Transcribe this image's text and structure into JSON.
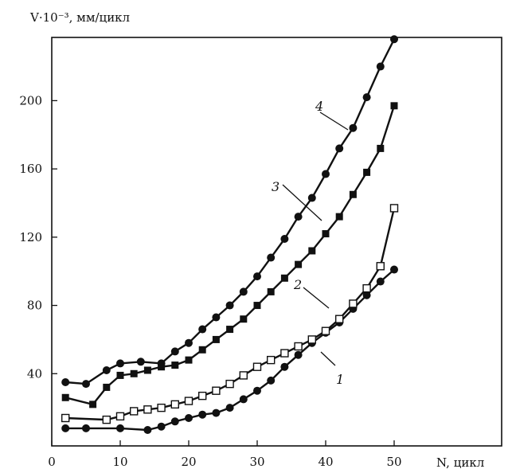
{
  "chart_data": {
    "type": "line",
    "ylabel": "V·10⁻³, мм/цикл",
    "xlabel": "N, цикл",
    "xlim": [
      0,
      52
    ],
    "ylim": [
      0,
      236
    ],
    "x_ticks": [
      0,
      10,
      20,
      30,
      40,
      50
    ],
    "y_ticks": [
      40,
      80,
      120,
      160,
      200
    ],
    "grid": false,
    "series": [
      {
        "name": "1",
        "marker": "filled-circle",
        "x": [
          2,
          5,
          10,
          14,
          16,
          18,
          20,
          22,
          24,
          26,
          28,
          30,
          32,
          34,
          36,
          38,
          40,
          42,
          44,
          46,
          48,
          50
        ],
        "y": [
          8,
          8,
          8,
          7,
          9,
          12,
          14,
          16,
          17,
          20,
          25,
          30,
          36,
          44,
          51,
          58,
          64,
          70,
          78,
          86,
          94,
          101
        ]
      },
      {
        "name": "2",
        "marker": "open-square",
        "x": [
          2,
          8,
          10,
          12,
          14,
          16,
          18,
          20,
          22,
          24,
          26,
          28,
          30,
          32,
          34,
          36,
          38,
          40,
          42,
          44,
          46,
          48,
          50
        ],
        "y": [
          14,
          13,
          15,
          18,
          19,
          20,
          22,
          24,
          27,
          30,
          34,
          39,
          44,
          48,
          52,
          56,
          60,
          65,
          72,
          81,
          90,
          103,
          137
        ]
      },
      {
        "name": "3",
        "marker": "filled-square",
        "x": [
          2,
          6,
          8,
          10,
          12,
          14,
          16,
          18,
          20,
          22,
          24,
          26,
          28,
          30,
          32,
          34,
          36,
          38,
          40,
          42,
          44,
          46,
          48,
          50
        ],
        "y": [
          26,
          22,
          32,
          39,
          40,
          42,
          44,
          45,
          48,
          54,
          60,
          66,
          72,
          80,
          88,
          96,
          104,
          112,
          122,
          132,
          145,
          158,
          172,
          197
        ]
      },
      {
        "name": "4",
        "marker": "filled-circle",
        "x": [
          2,
          5,
          8,
          10,
          13,
          16,
          18,
          20,
          22,
          24,
          26,
          28,
          30,
          32,
          34,
          36,
          38,
          40,
          42,
          44,
          46,
          48,
          50
        ],
        "y": [
          35,
          34,
          42,
          46,
          47,
          46,
          53,
          58,
          66,
          73,
          80,
          88,
          97,
          108,
          119,
          132,
          143,
          157,
          172,
          184,
          202,
          220,
          236
        ]
      }
    ]
  }
}
